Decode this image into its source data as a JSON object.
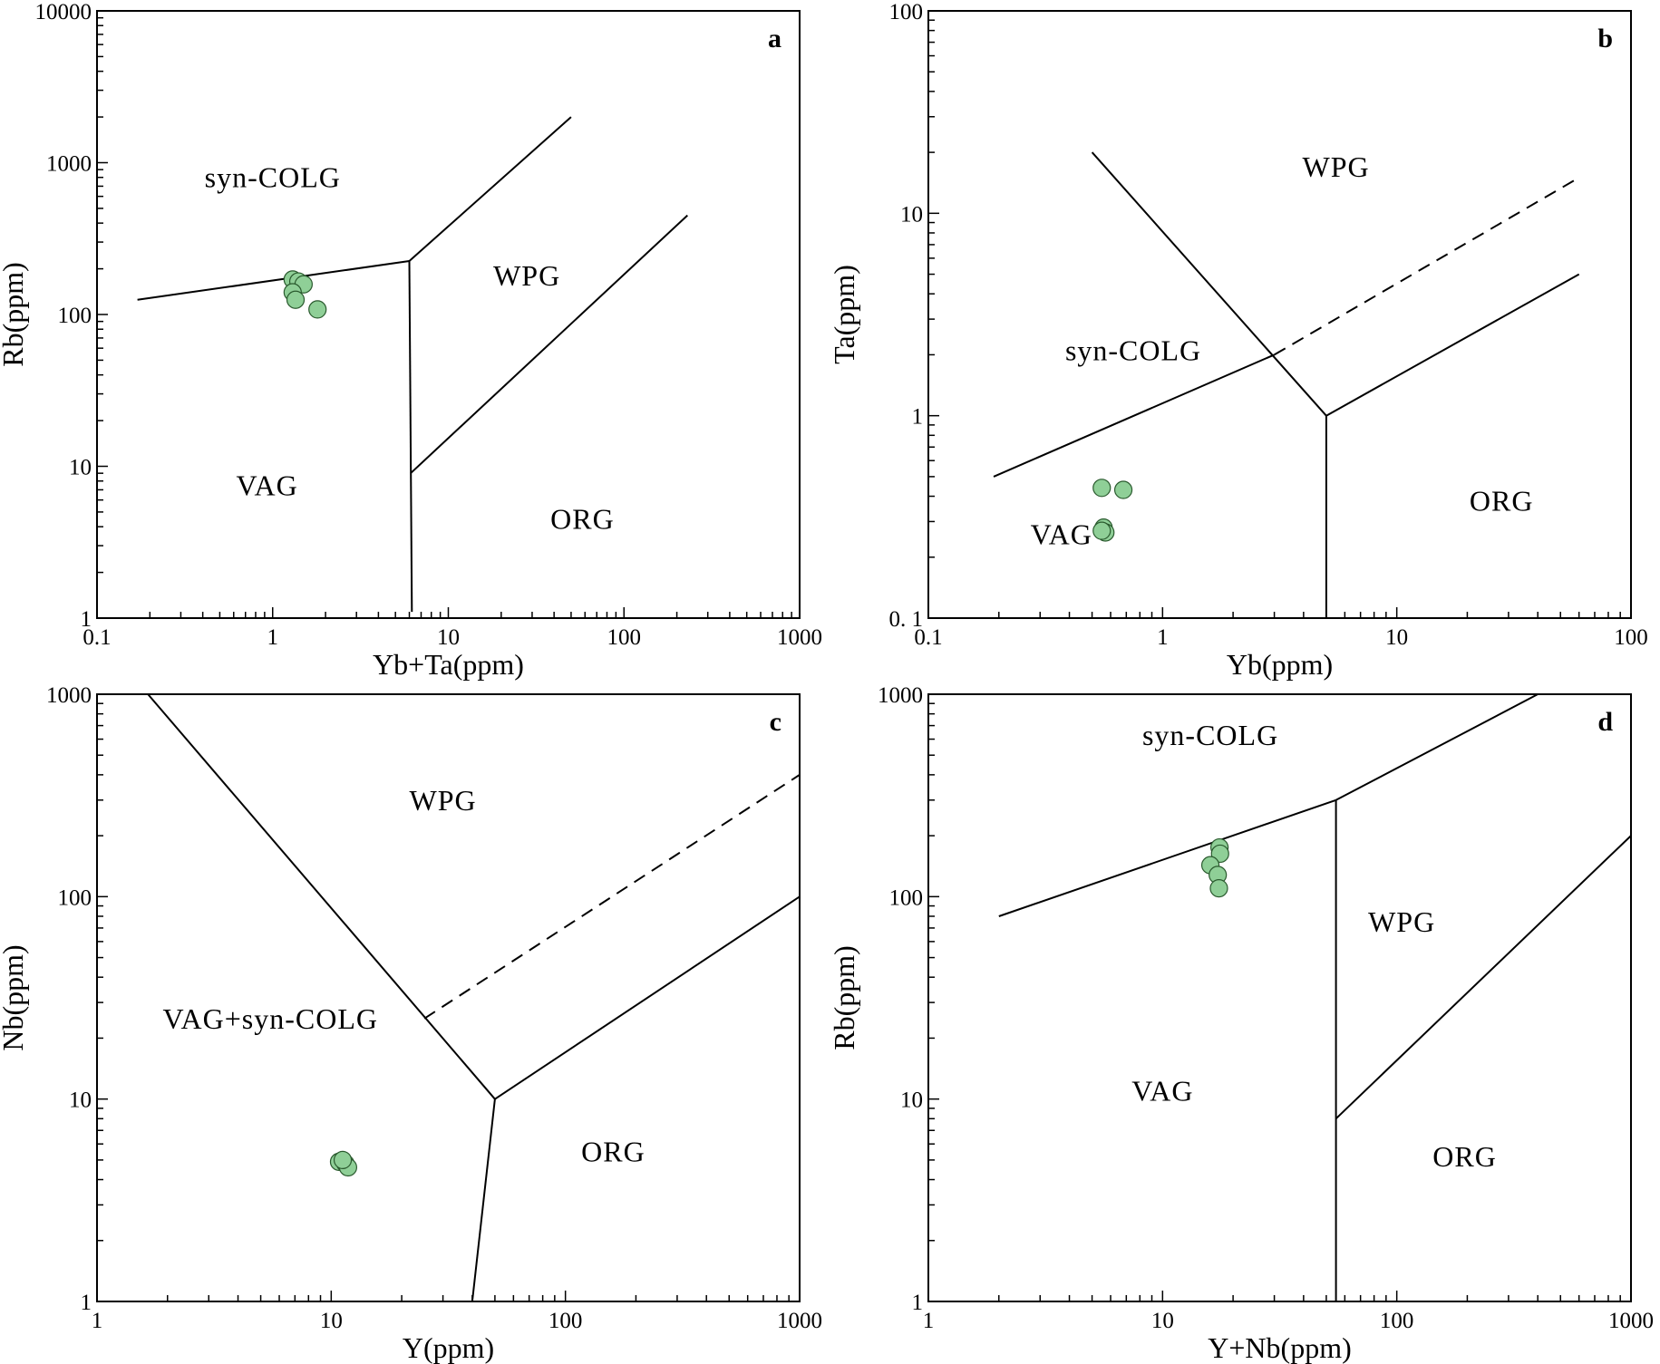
{
  "styles": {
    "point_fill": "#8fcf97",
    "point_stroke": "#2a5a2e",
    "line": "#000000"
  },
  "chart_data": [
    {
      "type": "scatter",
      "panel_label": "a",
      "xlabel": "Yb+Ta(ppm)",
      "ylabel": "Rb(ppm)",
      "xscale": "log",
      "yscale": "log",
      "xlim": [
        0.1,
        1000
      ],
      "ylim": [
        1,
        10000
      ],
      "xticks": [
        {
          "v": 0.1,
          "label": "0.1"
        },
        {
          "v": 1,
          "label": "1"
        },
        {
          "v": 10,
          "label": "10"
        },
        {
          "v": 100,
          "label": "100"
        },
        {
          "v": 1000,
          "label": "1000"
        }
      ],
      "yticks": [
        {
          "v": 1,
          "label": "1"
        },
        {
          "v": 10,
          "label": "10"
        },
        {
          "v": 100,
          "label": "100"
        },
        {
          "v": 1000,
          "label": "1000"
        },
        {
          "v": 10000,
          "label": "10000"
        }
      ],
      "boundaries": [
        {
          "style": "solid",
          "points": [
            [
              0.17,
              125
            ],
            [
              6,
              225
            ]
          ]
        },
        {
          "style": "solid",
          "points": [
            [
              6,
              225
            ],
            [
              50,
              2000
            ]
          ]
        },
        {
          "style": "solid",
          "points": [
            [
              6,
              225
            ],
            [
              6.2,
              1.1
            ]
          ]
        },
        {
          "style": "solid",
          "points": [
            [
              6.1,
              9
            ],
            [
              230,
              450
            ]
          ]
        }
      ],
      "regions": [
        {
          "label": "syn-COLG",
          "x": 1,
          "y": 800
        },
        {
          "label": "WPG",
          "x": 28,
          "y": 180
        },
        {
          "label": "VAG",
          "x": 0.93,
          "y": 7.5
        },
        {
          "label": "ORG",
          "x": 58,
          "y": 4.5
        }
      ],
      "points": [
        [
          1.3,
          170
        ],
        [
          1.4,
          165
        ],
        [
          1.5,
          158
        ],
        [
          1.3,
          140
        ],
        [
          1.35,
          125
        ],
        [
          1.8,
          108
        ]
      ]
    },
    {
      "type": "scatter",
      "panel_label": "b",
      "xlabel": "Yb(ppm)",
      "ylabel": "Ta(ppm)",
      "xscale": "log",
      "yscale": "log",
      "xlim": [
        0.1,
        100
      ],
      "ylim": [
        0.1,
        100
      ],
      "xticks": [
        {
          "v": 0.1,
          "label": "0.1"
        },
        {
          "v": 1,
          "label": "1"
        },
        {
          "v": 10,
          "label": "10"
        },
        {
          "v": 100,
          "label": "100"
        }
      ],
      "yticks": [
        {
          "v": 0.1,
          "label": "0. 1"
        },
        {
          "v": 1,
          "label": "1"
        },
        {
          "v": 10,
          "label": "10"
        },
        {
          "v": 100,
          "label": "100"
        }
      ],
      "boundaries": [
        {
          "style": "solid",
          "points": [
            [
              0.19,
              0.5
            ],
            [
              3,
              2
            ]
          ]
        },
        {
          "style": "dashed",
          "points": [
            [
              3,
              2
            ],
            [
              60,
              15
            ]
          ]
        },
        {
          "style": "solid",
          "points": [
            [
              0.5,
              20
            ],
            [
              5,
              1
            ]
          ]
        },
        {
          "style": "solid",
          "points": [
            [
              5,
              1
            ],
            [
              5,
              0.1
            ]
          ]
        },
        {
          "style": "solid",
          "points": [
            [
              5,
              1
            ],
            [
              60,
              5
            ]
          ]
        }
      ],
      "regions": [
        {
          "label": "WPG",
          "x": 5.5,
          "y": 17
        },
        {
          "label": "syn-COLG",
          "x": 0.75,
          "y": 2.1
        },
        {
          "label": "VAG",
          "x": 0.37,
          "y": 0.26
        },
        {
          "label": "ORG",
          "x": 28,
          "y": 0.38
        }
      ],
      "points": [
        [
          0.55,
          0.44
        ],
        [
          0.68,
          0.43
        ],
        [
          0.56,
          0.28
        ],
        [
          0.57,
          0.265
        ],
        [
          0.55,
          0.27
        ]
      ]
    },
    {
      "type": "scatter",
      "panel_label": "c",
      "xlabel": "Y(ppm)",
      "ylabel": "Nb(ppm)",
      "xscale": "log",
      "yscale": "log",
      "xlim": [
        1,
        1000
      ],
      "ylim": [
        1,
        1000
      ],
      "xticks": [
        {
          "v": 1,
          "label": "1"
        },
        {
          "v": 10,
          "label": "10"
        },
        {
          "v": 100,
          "label": "100"
        },
        {
          "v": 1000,
          "label": "1000"
        }
      ],
      "yticks": [
        {
          "v": 1,
          "label": "1"
        },
        {
          "v": 10,
          "label": "10"
        },
        {
          "v": 100,
          "label": "100"
        },
        {
          "v": 1000,
          "label": "1000"
        }
      ],
      "boundaries": [
        {
          "style": "solid",
          "points": [
            [
              1.65,
              1000
            ],
            [
              50,
              10
            ]
          ]
        },
        {
          "style": "dashed",
          "points": [
            [
              25,
              25
            ],
            [
              1000,
              400
            ]
          ]
        },
        {
          "style": "solid",
          "points": [
            [
              50,
              10
            ],
            [
              40,
              1
            ]
          ]
        },
        {
          "style": "solid",
          "points": [
            [
              50,
              10
            ],
            [
              1000,
              100
            ]
          ]
        }
      ],
      "regions": [
        {
          "label": "WPG",
          "x": 30,
          "y": 300
        },
        {
          "label": "VAG+syn-COLG",
          "x": 5.5,
          "y": 25
        },
        {
          "label": "ORG",
          "x": 160,
          "y": 5.5
        }
      ],
      "points": [
        [
          10.8,
          4.9
        ],
        [
          11.5,
          4.8
        ],
        [
          11.8,
          4.6
        ],
        [
          11.2,
          5.0
        ]
      ]
    },
    {
      "type": "scatter",
      "panel_label": "d",
      "xlabel": "Y+Nb(ppm)",
      "ylabel": "Rb(ppm)",
      "xscale": "log",
      "yscale": "log",
      "xlim": [
        1,
        1000
      ],
      "ylim": [
        1,
        1000
      ],
      "xticks": [
        {
          "v": 1,
          "label": "1"
        },
        {
          "v": 10,
          "label": "10"
        },
        {
          "v": 100,
          "label": "100"
        },
        {
          "v": 1000,
          "label": "1000"
        }
      ],
      "yticks": [
        {
          "v": 1,
          "label": "1"
        },
        {
          "v": 10,
          "label": "10"
        },
        {
          "v": 100,
          "label": "100"
        },
        {
          "v": 1000,
          "label": "1000"
        }
      ],
      "boundaries": [
        {
          "style": "solid",
          "points": [
            [
              2,
              80
            ],
            [
              55,
              300
            ]
          ]
        },
        {
          "style": "solid",
          "points": [
            [
              55,
              300
            ],
            [
              400,
              1000
            ]
          ]
        },
        {
          "style": "solid",
          "points": [
            [
              55,
              300
            ],
            [
              55,
              1
            ]
          ]
        },
        {
          "style": "solid",
          "points": [
            [
              55,
              8
            ],
            [
              1000,
              200
            ]
          ]
        }
      ],
      "regions": [
        {
          "label": "syn-COLG",
          "x": 16,
          "y": 630
        },
        {
          "label": "WPG",
          "x": 105,
          "y": 75
        },
        {
          "label": "VAG",
          "x": 10,
          "y": 11
        },
        {
          "label": "ORG",
          "x": 195,
          "y": 5.2
        }
      ],
      "points": [
        [
          17.5,
          175
        ],
        [
          17.6,
          163
        ],
        [
          16,
          143
        ],
        [
          17.2,
          128
        ],
        [
          17.4,
          110
        ]
      ]
    }
  ]
}
